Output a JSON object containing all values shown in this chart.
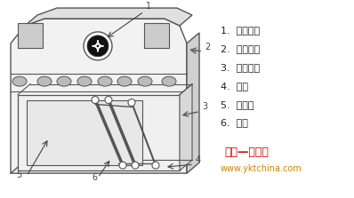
{
  "bg_color": "#ffffff",
  "labels": [
    "1.  方向指示",
    "2.  读卡区域",
    "3.  红外对射",
    "4.  箱体",
    "5.  机箱门",
    "6.  摆闸"
  ],
  "watermark1": "中国—卡通网",
  "watermark2": "www.yktchina.com",
  "watermark1_color": "#cc0000",
  "watermark2_color": "#cc8800",
  "label_color": "#222222",
  "line_color": "#444444",
  "edge_color": "#555555"
}
